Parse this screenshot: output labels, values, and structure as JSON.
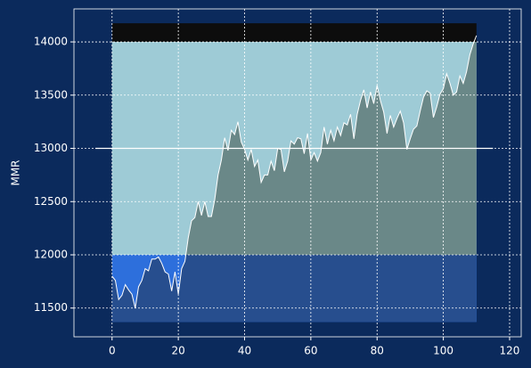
{
  "chart_data": {
    "type": "line",
    "ylabel": "MMR",
    "xlim": [
      -11.5,
      123.5
    ],
    "ylim": [
      11230,
      14310
    ],
    "xticks": [
      0,
      20,
      40,
      60,
      80,
      100,
      120
    ],
    "yticks": [
      11500,
      12000,
      12500,
      13000,
      13500,
      14000
    ],
    "grid": true,
    "bands": [
      {
        "xmin": 0,
        "xmax": 110,
        "ymin": 11370,
        "ymax": 12000,
        "color": "#2d6fdc",
        "below_color": "#274e8e"
      },
      {
        "xmin": 0,
        "xmax": 110,
        "ymin": 12000,
        "ymax": 14000,
        "color": "#9ecbd6",
        "below_color": "#6a8888"
      },
      {
        "xmin": 0,
        "xmax": 110,
        "ymin": 14000,
        "ymax": 14175,
        "color": "#0d0d0d"
      }
    ],
    "hline": {
      "y": 13000,
      "xmin": -5,
      "xmax": 115,
      "color": "#ffffff"
    },
    "series": [
      {
        "color": "#ffffff",
        "x": [
          0,
          1,
          2,
          3,
          4,
          5,
          6,
          7,
          8,
          9,
          10,
          11,
          12,
          13,
          14,
          15,
          16,
          17,
          18,
          19,
          20,
          21,
          22,
          23,
          24,
          25,
          26,
          27,
          28,
          29,
          30,
          31,
          32,
          33,
          34,
          35,
          36,
          37,
          38,
          39,
          40,
          41,
          42,
          43,
          44,
          45,
          46,
          47,
          48,
          49,
          50,
          51,
          52,
          53,
          54,
          55,
          56,
          57,
          58,
          59,
          60,
          61,
          62,
          63,
          64,
          65,
          66,
          67,
          68,
          69,
          70,
          71,
          72,
          73,
          74,
          75,
          76,
          77,
          78,
          79,
          80,
          81,
          82,
          83,
          84,
          85,
          86,
          87,
          88,
          89,
          90,
          91,
          92,
          93,
          94,
          95,
          96,
          97,
          98,
          99,
          100,
          101,
          102,
          103,
          104,
          105,
          106,
          107,
          108,
          109,
          110
        ],
        "values": [
          11800,
          11760,
          11580,
          11620,
          11720,
          11670,
          11630,
          11500,
          11700,
          11760,
          11870,
          11850,
          11960,
          11960,
          11980,
          11920,
          11840,
          11820,
          11660,
          11840,
          11630,
          11870,
          11940,
          12160,
          12320,
          12350,
          12500,
          12370,
          12500,
          12360,
          12360,
          12520,
          12750,
          12890,
          13100,
          12980,
          13170,
          13130,
          13250,
          13060,
          12990,
          12890,
          12990,
          12830,
          12890,
          12680,
          12750,
          12750,
          12880,
          12790,
          13000,
          12990,
          12780,
          12880,
          13070,
          13040,
          13100,
          13090,
          12950,
          13140,
          12890,
          12960,
          12880,
          12960,
          13200,
          13040,
          13170,
          13070,
          13200,
          13120,
          13240,
          13220,
          13320,
          13090,
          13320,
          13450,
          13550,
          13380,
          13530,
          13420,
          13590,
          13450,
          13340,
          13140,
          13310,
          13200,
          13280,
          13350,
          13240,
          12990,
          13090,
          13180,
          13210,
          13350,
          13480,
          13540,
          13520,
          13290,
          13390,
          13510,
          13560,
          13700,
          13610,
          13500,
          13530,
          13680,
          13610,
          13720,
          13880,
          13980,
          14060
        ]
      }
    ]
  }
}
